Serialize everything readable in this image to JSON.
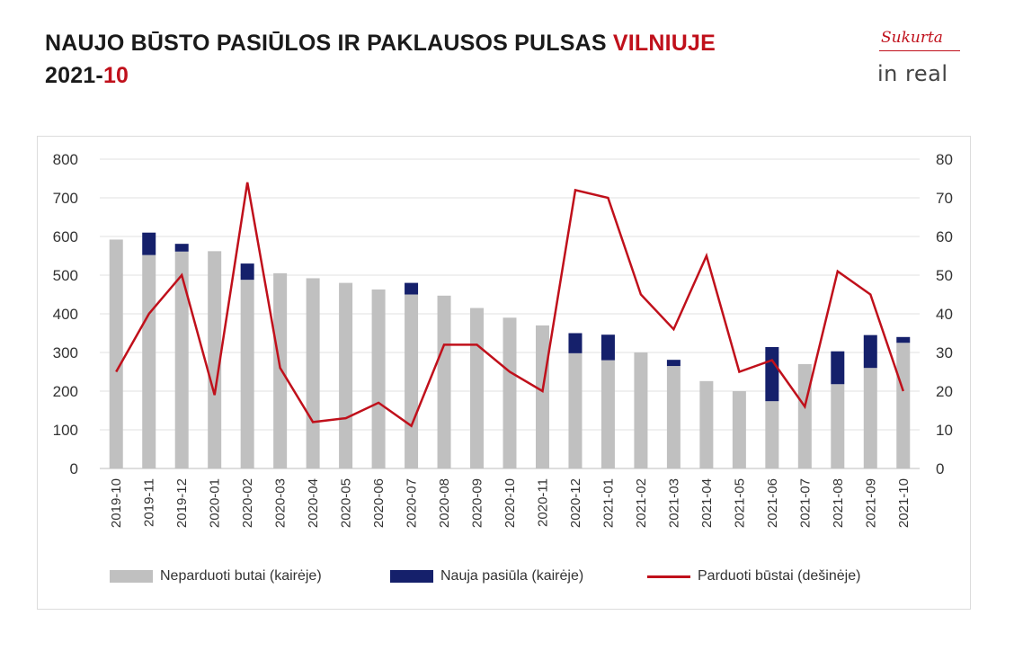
{
  "header": {
    "title_part1": "NAUJO BŪSTO PASIŪLOS IR PAKLAUSOS PULSAS ",
    "title_part2": "VILNIUJE",
    "date_part1": "2021-",
    "date_part2": "10"
  },
  "logo": {
    "tagline": "Sukurta",
    "brand": "in real"
  },
  "colors": {
    "unsold": "#c0c0c0",
    "new_supply": "#15206b",
    "sold": "#c0101b",
    "accent": "#c0101b"
  },
  "chart_data": {
    "type": "bar",
    "categories": [
      "2019-10",
      "2019-11",
      "2019-12",
      "2020-01",
      "2020-02",
      "2020-03",
      "2020-04",
      "2020-05",
      "2020-06",
      "2020-07",
      "2020-08",
      "2020-09",
      "2020-10",
      "2020-11",
      "2020-12",
      "2021-01",
      "2021-02",
      "2021-03",
      "2021-04",
      "2021-05",
      "2021-06",
      "2021-07",
      "2021-08",
      "2021-09",
      "2021-10"
    ],
    "series": [
      {
        "name": "Neparduoti butai (kairėje)",
        "type": "bar",
        "axis": "left",
        "stack": "a",
        "values": [
          592,
          552,
          561,
          562,
          488,
          505,
          492,
          480,
          463,
          450,
          447,
          415,
          390,
          370,
          298,
          280,
          300,
          265,
          226,
          200,
          174,
          270,
          218,
          260,
          325
        ]
      },
      {
        "name": "Nauja pasiūla (kairėje)",
        "type": "bar",
        "axis": "left",
        "stack": "a",
        "values": [
          0,
          58,
          20,
          0,
          42,
          0,
          0,
          0,
          0,
          30,
          0,
          0,
          0,
          0,
          52,
          66,
          0,
          16,
          0,
          0,
          140,
          0,
          85,
          85,
          15
        ]
      },
      {
        "name": "Parduoti būstai (dešinėje)",
        "type": "line",
        "axis": "right",
        "values": [
          25,
          40,
          50,
          19,
          74,
          26,
          12,
          13,
          17,
          11,
          32,
          32,
          25,
          20,
          72,
          70,
          45,
          36,
          55,
          25,
          28,
          16,
          51,
          45,
          20
        ]
      }
    ],
    "y_left": {
      "min": 0,
      "max": 800,
      "ticks": [
        "0",
        "100",
        "200",
        "300",
        "400",
        "500",
        "600",
        "700",
        "800"
      ]
    },
    "y_right": {
      "min": 0,
      "max": 80,
      "ticks": [
        "0",
        "10",
        "20",
        "30",
        "40",
        "50",
        "60",
        "70",
        "80"
      ]
    },
    "grid": true,
    "legend_position": "bottom"
  }
}
